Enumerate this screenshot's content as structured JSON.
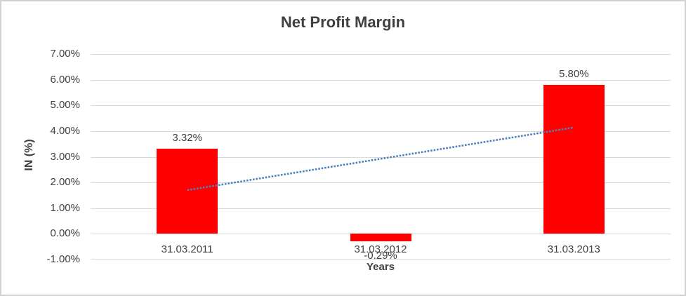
{
  "chart_data": {
    "type": "bar",
    "title": "Net Profit Margin",
    "xlabel": "Years",
    "ylabel": "IN (%)",
    "categories": [
      "31.03.2011",
      "31.03.2012",
      "31.03.2013"
    ],
    "values": [
      3.32,
      -0.29,
      5.8
    ],
    "data_labels": [
      "3.32%",
      "-0.29%",
      "5.80%"
    ],
    "ylim": [
      -1,
      7
    ],
    "ytick_values": [
      7,
      6,
      5,
      4,
      3,
      2,
      1,
      0,
      -1
    ],
    "ytick_labels": [
      "7.00%",
      "6.00%",
      "5.00%",
      "4.00%",
      "3.00%",
      "2.00%",
      "1.00%",
      "0.00%",
      "-1.00%"
    ],
    "grid": true,
    "legend": "none",
    "colors": {
      "bar": "#FF0000",
      "gridline": "#D9D9D9",
      "text": "#404040",
      "trendline": "#4F81BD",
      "frame_border": "#D2D2D2"
    },
    "trendline": {
      "type": "linear",
      "style": "dotted",
      "color": "#4F81BD",
      "start_value": 1.7,
      "end_value": 4.14
    }
  }
}
